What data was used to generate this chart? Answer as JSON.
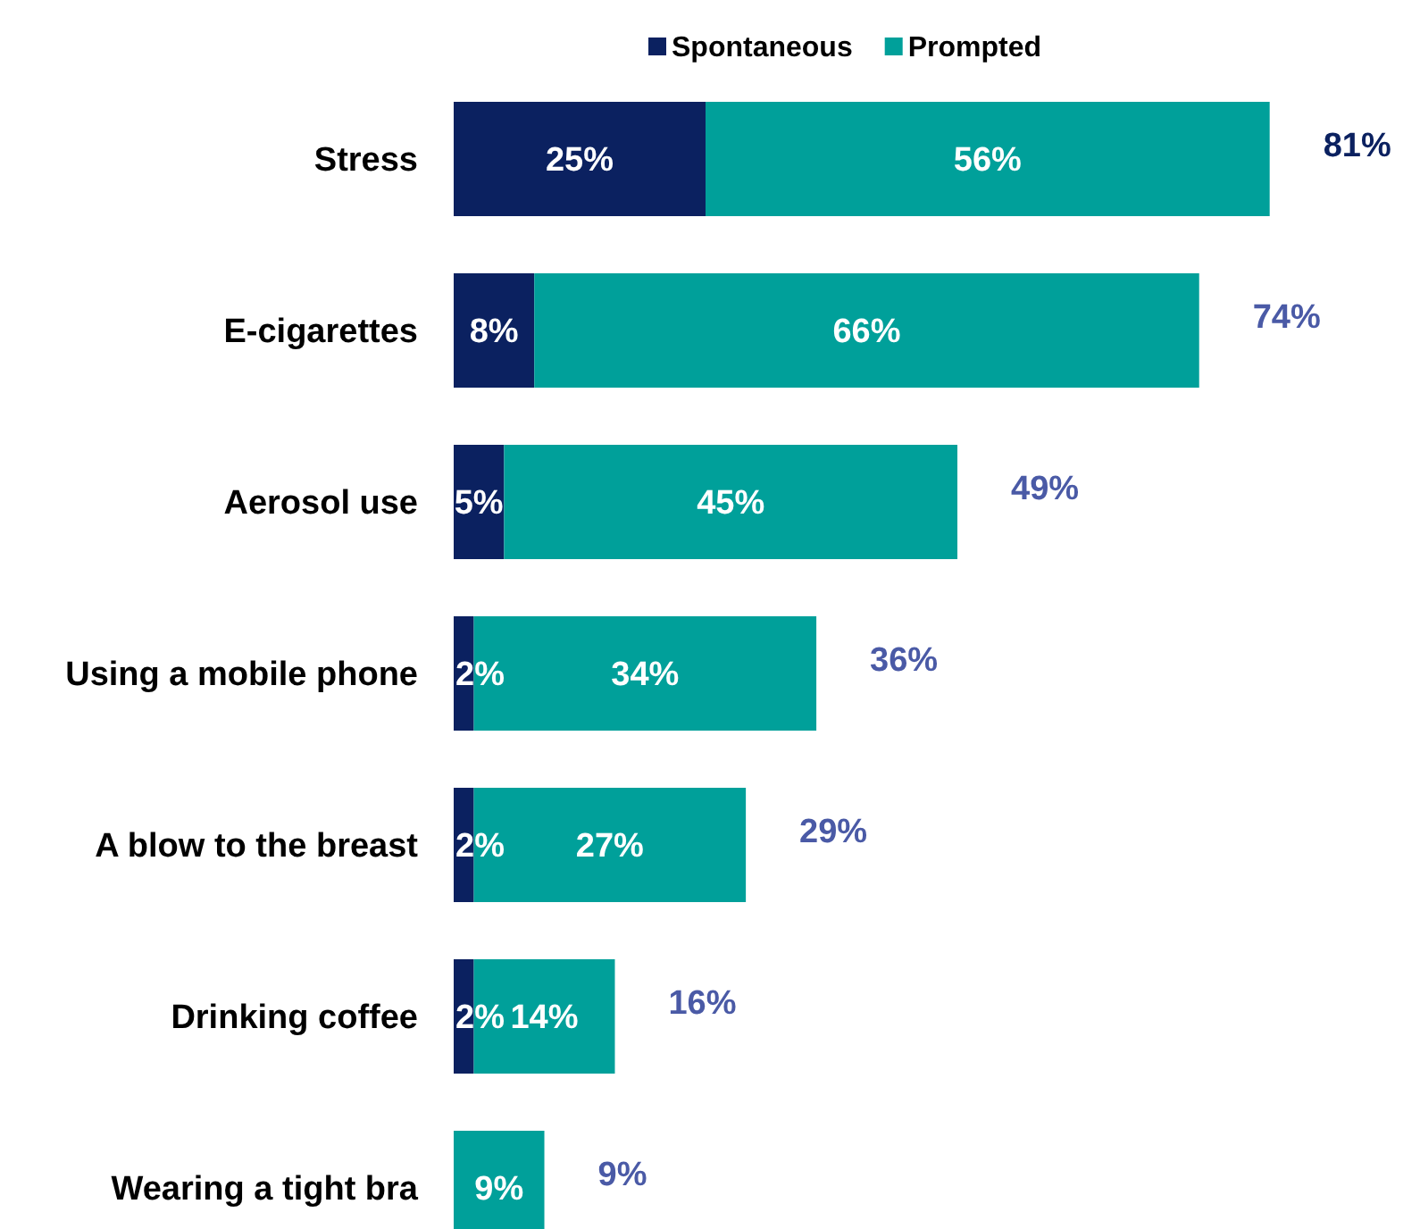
{
  "chart_data": {
    "type": "bar",
    "orientation": "horizontal",
    "stacked": true,
    "legend": "top",
    "categories": [
      "Stress",
      "E-cigarettes",
      "Aerosol use",
      "Using a mobile phone",
      "A blow to the breast",
      "Drinking coffee",
      "Wearing a tight bra"
    ],
    "series": [
      {
        "name": "Spontaneous",
        "color": "#0b2160",
        "values": [
          25,
          8,
          5,
          2,
          2,
          2,
          0
        ],
        "value_labels": [
          "25%",
          "8%",
          "5%",
          "2%",
          "2%",
          "2%",
          null
        ]
      },
      {
        "name": "Prompted",
        "color": "#00a09a",
        "values": [
          56,
          66,
          45,
          34,
          27,
          14,
          9
        ],
        "value_labels": [
          "56%",
          "66%",
          "45%",
          "34%",
          "27%",
          "14%",
          "9%"
        ]
      }
    ],
    "totals": [
      "81%",
      "74%",
      "49%",
      "36%",
      "29%",
      "16%",
      "9%"
    ]
  }
}
